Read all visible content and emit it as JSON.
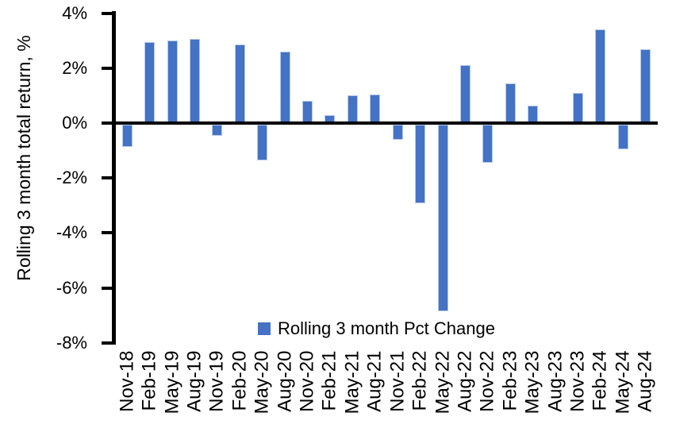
{
  "figure": {
    "y_axis_title": "Rolling 3 month total return, %",
    "legend_label": "Rolling 3 month Pct Change",
    "colors": {
      "bar_fill": "#4472C4",
      "bar_edge": "#b7c9ec",
      "axis": "#000000",
      "background": "#ffffff"
    }
  },
  "chart_data": {
    "type": "bar",
    "title": "",
    "xlabel": "",
    "ylabel": "Rolling 3 month total return, %",
    "unit": "%",
    "ylim": [
      -8,
      4
    ],
    "ytick_step": 2,
    "yticks": [
      4,
      2,
      0,
      -2,
      -4,
      -6,
      -8
    ],
    "ytick_labels": [
      "4%",
      "2%",
      "0%",
      "-2%",
      "-4%",
      "-6%",
      "-8%"
    ],
    "grid": false,
    "legend_position": "bottom-inside",
    "legend": [
      "Rolling 3 month Pct Change"
    ],
    "categories": [
      "Nov-18",
      "Feb-19",
      "May-19",
      "Aug-19",
      "Nov-19",
      "Feb-20",
      "May-20",
      "Aug-20",
      "Nov-20",
      "Feb-21",
      "May-21",
      "Aug-21",
      "Nov-21",
      "Feb-22",
      "May-22",
      "Aug-22",
      "Nov-22",
      "Feb-23",
      "May-23",
      "Aug-23",
      "Nov-23",
      "Feb-24",
      "May-24",
      "Aug-24"
    ],
    "series": [
      {
        "name": "Rolling 3 month Pct Change",
        "values": [
          -0.8,
          2.95,
          3.0,
          3.05,
          -0.4,
          2.85,
          -1.3,
          2.6,
          0.8,
          0.3,
          1.0,
          1.05,
          -0.55,
          -2.85,
          -6.8,
          2.1,
          -1.4,
          1.45,
          0.65,
          0.0,
          1.1,
          3.4,
          -0.9,
          2.7
        ]
      }
    ]
  }
}
